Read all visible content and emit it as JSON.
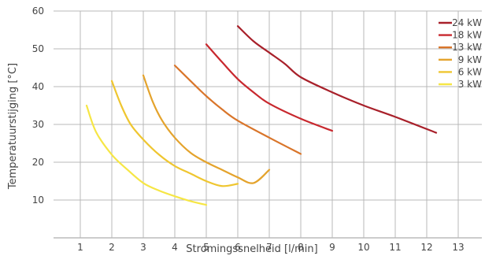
{
  "chart_data": {
    "type": "line",
    "xlabel": "Stromingssnelheid [l/min]",
    "ylabel": "Temperatuurstijging [°C]",
    "xlim": [
      0,
      14
    ],
    "ylim": [
      0,
      60
    ],
    "x_ticks": [
      "1",
      "2",
      "3",
      "4",
      "5",
      "6",
      "7",
      "8",
      "9",
      "10",
      "11",
      "12",
      "13"
    ],
    "y_ticks": [
      "10",
      "20",
      "30",
      "40",
      "50",
      "60"
    ],
    "grid": true,
    "legend_position": "top-right",
    "series": [
      {
        "name": "24 kW",
        "color": "#a8202a",
        "points": [
          [
            6,
            56
          ],
          [
            6.5,
            52
          ],
          [
            7,
            49
          ],
          [
            7.5,
            46
          ],
          [
            8,
            42.5
          ],
          [
            9,
            38.5
          ],
          [
            10,
            35
          ],
          [
            11,
            32
          ],
          [
            12.3,
            27.8
          ]
        ]
      },
      {
        "name": "18 kW",
        "color": "#c8282e",
        "points": [
          [
            5,
            51.2
          ],
          [
            5.5,
            46.5
          ],
          [
            6,
            42
          ],
          [
            6.5,
            38.5
          ],
          [
            7,
            35.5
          ],
          [
            8,
            31.5
          ],
          [
            9,
            28.3
          ]
        ]
      },
      {
        "name": "13 kW",
        "color": "#d9752a",
        "points": [
          [
            4,
            45.6
          ],
          [
            4.5,
            41.5
          ],
          [
            5,
            37.5
          ],
          [
            5.5,
            34
          ],
          [
            6,
            31
          ],
          [
            7,
            26.5
          ],
          [
            8,
            22.2
          ]
        ]
      },
      {
        "name": "9 kW",
        "color": "#e4a32c",
        "points": [
          [
            3,
            43
          ],
          [
            3.3,
            36
          ],
          [
            3.6,
            31
          ],
          [
            4,
            26.5
          ],
          [
            4.5,
            22.5
          ],
          [
            5,
            20
          ],
          [
            5.5,
            18
          ],
          [
            6,
            16
          ],
          [
            6.5,
            14.5
          ],
          [
            7,
            18
          ]
        ]
      },
      {
        "name": "6 kW",
        "color": "#efc630",
        "points": [
          [
            2,
            41.5
          ],
          [
            2.3,
            35
          ],
          [
            2.6,
            30
          ],
          [
            3,
            26
          ],
          [
            3.5,
            22
          ],
          [
            4,
            19
          ],
          [
            4.5,
            17
          ],
          [
            5,
            15
          ],
          [
            5.5,
            13.7
          ],
          [
            6,
            14.3
          ]
        ]
      },
      {
        "name": "3 kW",
        "color": "#f6e645",
        "points": [
          [
            1.2,
            35
          ],
          [
            1.5,
            28
          ],
          [
            2,
            22
          ],
          [
            2.5,
            18
          ],
          [
            3,
            14.5
          ],
          [
            3.5,
            12.5
          ],
          [
            4,
            11
          ],
          [
            4.5,
            9.7
          ],
          [
            5,
            8.7
          ]
        ]
      }
    ]
  }
}
